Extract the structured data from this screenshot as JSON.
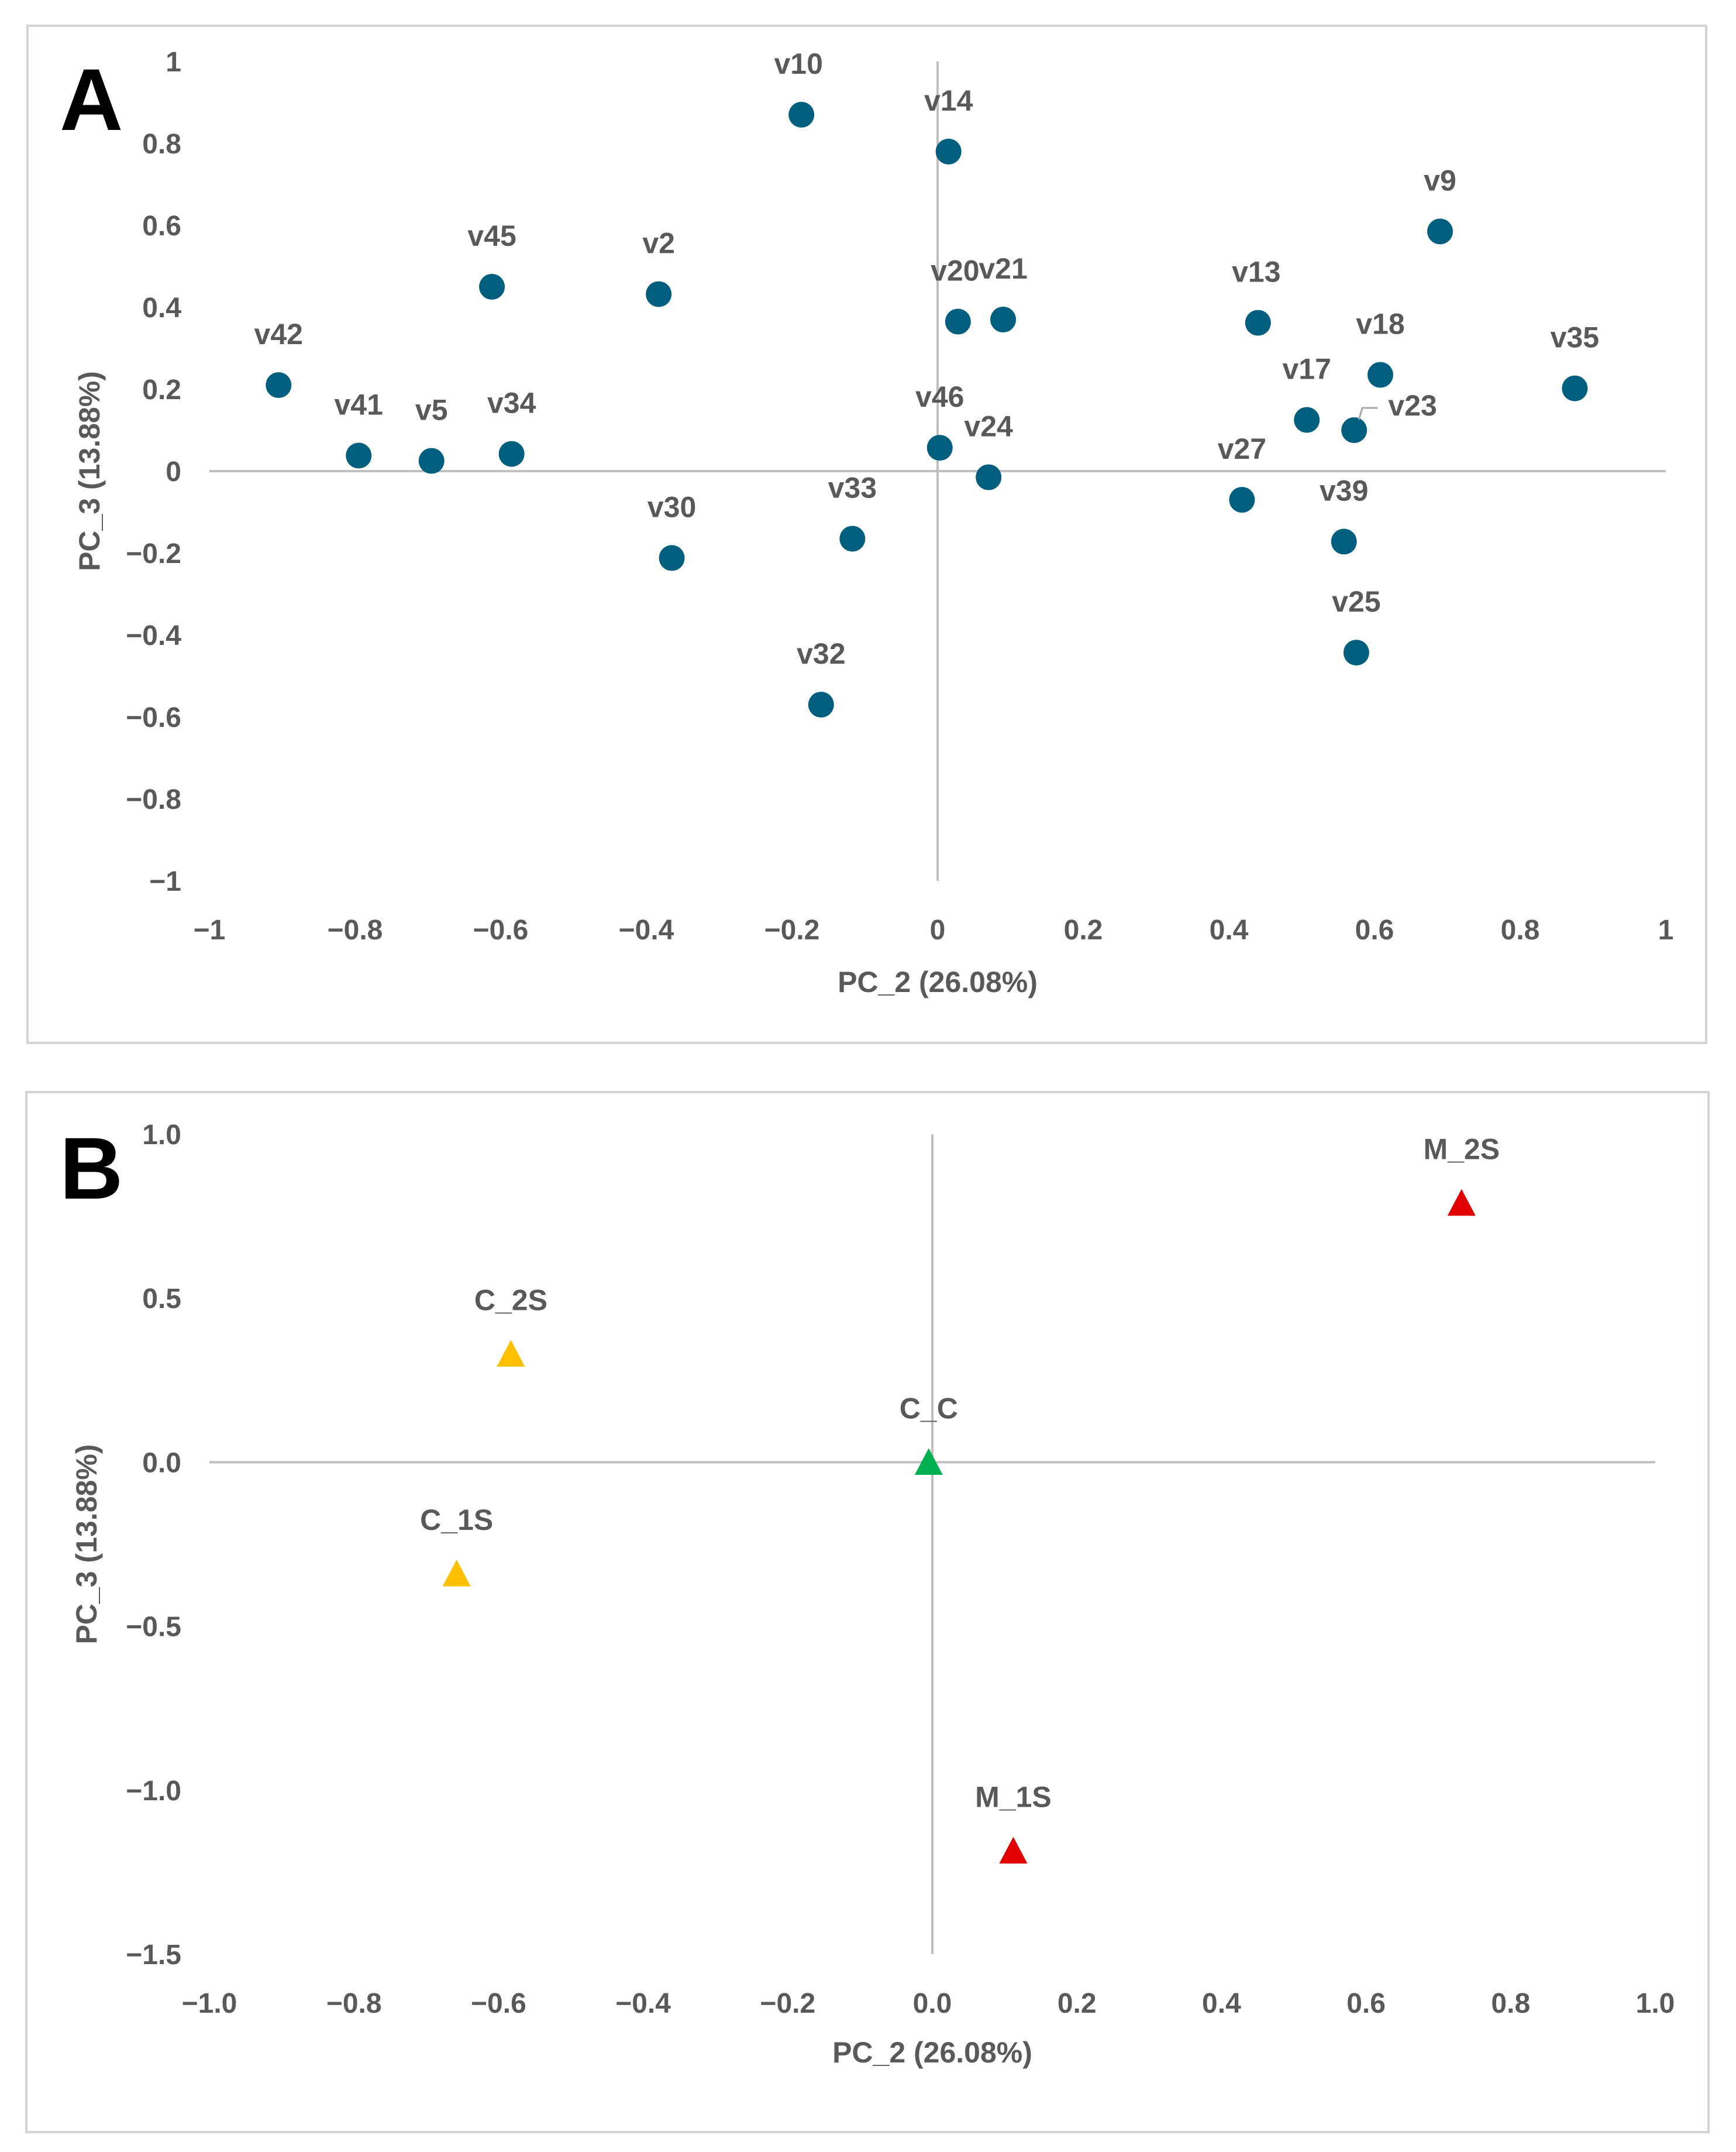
{
  "panels": [
    {
      "letter": "A",
      "chart_data": {
        "type": "scatter",
        "marker": "circle",
        "xlabel": "PC_2 (26.08%)",
        "ylabel": "PC_3 (13.88%)",
        "xlim": [
          -1,
          1
        ],
        "ylim": [
          -1,
          1
        ],
        "x_ticks": [
          -1,
          -0.8,
          -0.6,
          -0.4,
          -0.2,
          0,
          0.2,
          0.4,
          0.6,
          0.8,
          1
        ],
        "y_ticks": [
          -1,
          -0.8,
          -0.6,
          -0.4,
          -0.2,
          0,
          0.2,
          0.4,
          0.6,
          0.8,
          1
        ],
        "x_tick_labels": [
          "−1",
          "−0.8",
          "−0.6",
          "−0.4",
          "−0.2",
          "0",
          "0.2",
          "0.4",
          "0.6",
          "0.8",
          "1"
        ],
        "y_tick_labels": [
          "−1",
          "−0.8",
          "−0.6",
          "−0.4",
          "−0.2",
          "0",
          "0.2",
          "0.4",
          "0.6",
          "0.8",
          "1"
        ],
        "series_color": "#005f7f",
        "points": [
          {
            "label": "v10",
            "x": -0.187,
            "y": 0.87
          },
          {
            "label": "v14",
            "x": 0.015,
            "y": 0.78
          },
          {
            "label": "v9",
            "x": 0.69,
            "y": 0.585
          },
          {
            "label": "v45",
            "x": -0.612,
            "y": 0.45
          },
          {
            "label": "v2",
            "x": -0.383,
            "y": 0.432
          },
          {
            "label": "v20",
            "x": 0.028,
            "y": 0.365
          },
          {
            "label": "v21",
            "x": 0.09,
            "y": 0.37
          },
          {
            "label": "v13",
            "x": 0.44,
            "y": 0.362
          },
          {
            "label": "v42",
            "x": -0.905,
            "y": 0.21
          },
          {
            "label": "v18",
            "x": 0.608,
            "y": 0.235
          },
          {
            "label": "v35",
            "x": 0.875,
            "y": 0.202
          },
          {
            "label": "v17",
            "x": 0.507,
            "y": 0.125
          },
          {
            "label": "v23",
            "x": 0.572,
            "y": 0.1
          },
          {
            "label": "v41",
            "x": -0.795,
            "y": 0.038
          },
          {
            "label": "v5",
            "x": -0.695,
            "y": 0.025
          },
          {
            "label": "v34",
            "x": -0.585,
            "y": 0.042
          },
          {
            "label": "v46",
            "x": 0.003,
            "y": 0.057
          },
          {
            "label": "v24",
            "x": 0.07,
            "y": -0.015
          },
          {
            "label": "v27",
            "x": 0.418,
            "y": -0.07
          },
          {
            "label": "v33",
            "x": -0.117,
            "y": -0.165
          },
          {
            "label": "v39",
            "x": 0.558,
            "y": -0.172
          },
          {
            "label": "v30",
            "x": -0.365,
            "y": -0.212
          },
          {
            "label": "v25",
            "x": 0.575,
            "y": -0.443
          },
          {
            "label": "v32",
            "x": -0.16,
            "y": -0.57
          }
        ]
      }
    },
    {
      "letter": "B",
      "chart_data": {
        "type": "scatter",
        "marker": "triangle",
        "xlabel": "PC_2 (26.08%)",
        "ylabel": "PC_3 (13.88%)",
        "xlim": [
          -1.0,
          1.0
        ],
        "ylim": [
          -1.5,
          1.0
        ],
        "x_ticks": [
          -1.0,
          -0.8,
          -0.6,
          -0.4,
          -0.2,
          0.0,
          0.2,
          0.4,
          0.6,
          0.8,
          1.0
        ],
        "y_ticks": [
          -1.5,
          -1.0,
          -0.5,
          0.0,
          0.5,
          1.0
        ],
        "x_tick_labels": [
          "−1.0",
          "−0.8",
          "−0.6",
          "−0.4",
          "−0.2",
          "0.0",
          "0.2",
          "0.4",
          "0.6",
          "0.8",
          "1.0"
        ],
        "y_tick_labels": [
          "−1.5",
          "−1.0",
          "−0.5",
          "0.0",
          "0.5",
          "1.0"
        ],
        "points": [
          {
            "label": "M_2S",
            "x": 0.732,
            "y": 0.79,
            "color": "#e00000"
          },
          {
            "label": "C_2S",
            "x": -0.583,
            "y": 0.33,
            "color": "#ffc000"
          },
          {
            "label": "C_C",
            "x": -0.005,
            "y": 0.0,
            "color": "#00b050"
          },
          {
            "label": "C_1S",
            "x": -0.658,
            "y": -0.34,
            "color": "#ffc000"
          },
          {
            "label": "M_1S",
            "x": 0.112,
            "y": -1.185,
            "color": "#e00000"
          }
        ]
      }
    }
  ]
}
